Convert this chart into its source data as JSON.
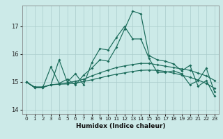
{
  "xlabel": "Humidex (Indice chaleur)",
  "background_color": "#cceae8",
  "grid_color": "#aacccc",
  "line_color": "#1a6b5a",
  "xlim": [
    -0.5,
    23.5
  ],
  "ylim": [
    13.85,
    17.75
  ],
  "yticks": [
    14,
    15,
    16,
    17
  ],
  "xticks": [
    0,
    1,
    2,
    3,
    4,
    5,
    6,
    7,
    8,
    9,
    10,
    11,
    12,
    13,
    14,
    15,
    16,
    17,
    18,
    19,
    20,
    21,
    22,
    23
  ],
  "series": [
    [
      15.0,
      14.8,
      14.8,
      15.55,
      14.95,
      15.1,
      14.9,
      15.25,
      15.5,
      15.8,
      15.75,
      16.25,
      16.9,
      17.55,
      17.45,
      15.95,
      15.8,
      15.75,
      15.65,
      15.4,
      15.6,
      14.85,
      15.05,
      14.5
    ],
    [
      15.0,
      14.8,
      14.8,
      14.9,
      15.8,
      15.0,
      15.3,
      14.9,
      15.7,
      16.2,
      16.15,
      16.6,
      17.0,
      16.55,
      16.55,
      15.85,
      15.35,
      15.35,
      15.4,
      15.3,
      14.9,
      15.05,
      15.5,
      14.65
    ],
    [
      15.0,
      14.82,
      14.82,
      14.9,
      14.92,
      14.93,
      14.96,
      15.02,
      15.08,
      15.15,
      15.22,
      15.28,
      15.33,
      15.38,
      15.42,
      15.43,
      15.42,
      15.38,
      15.32,
      15.25,
      15.17,
      15.07,
      14.95,
      14.78
    ],
    [
      15.0,
      14.82,
      14.82,
      14.9,
      14.93,
      14.97,
      15.03,
      15.1,
      15.22,
      15.33,
      15.43,
      15.52,
      15.58,
      15.63,
      15.67,
      15.67,
      15.62,
      15.57,
      15.52,
      15.47,
      15.42,
      15.32,
      15.22,
      15.06
    ]
  ]
}
